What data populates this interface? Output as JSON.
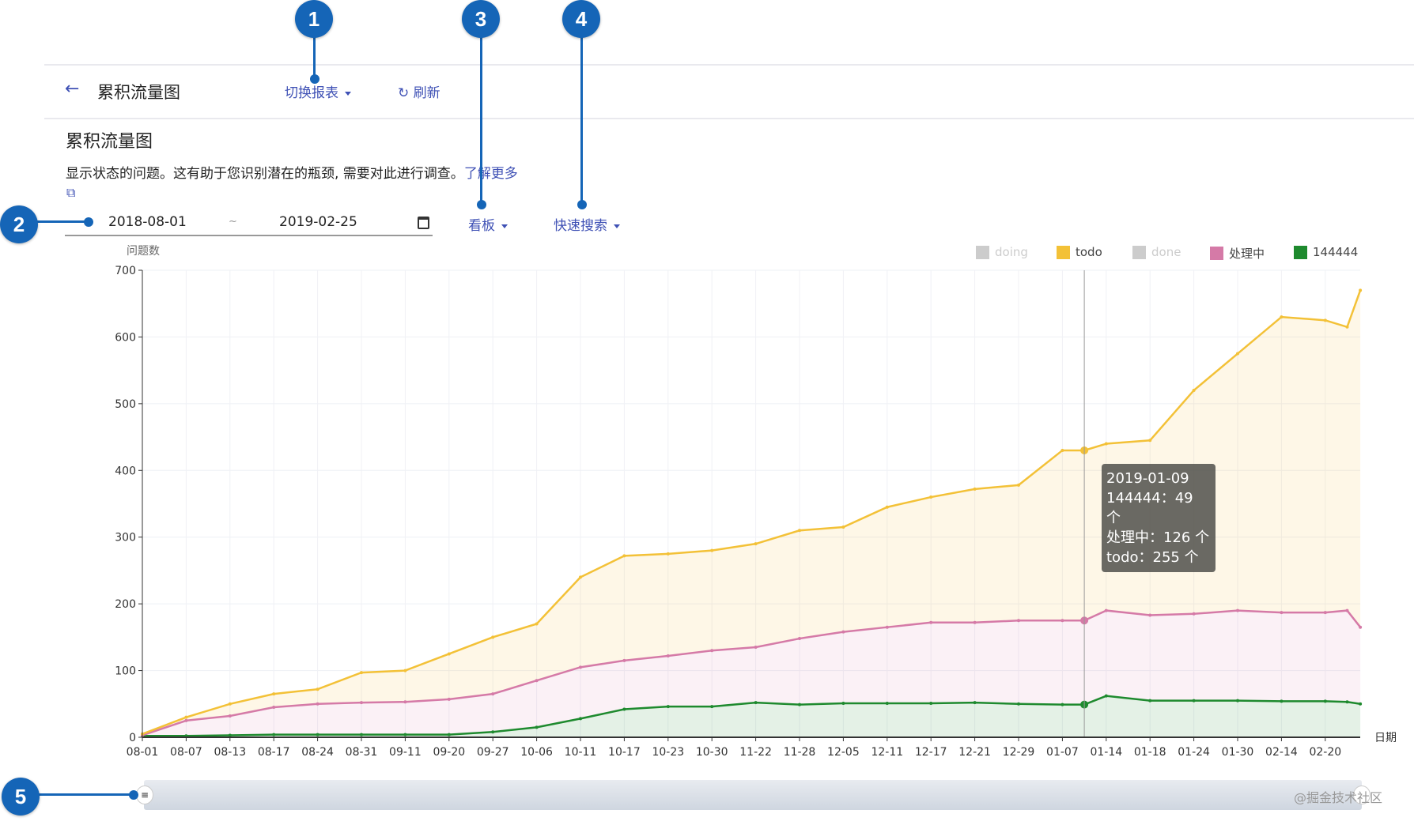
{
  "header": {
    "title": "累积流量图",
    "switch_report": "切换报表",
    "refresh": "刷新"
  },
  "page": {
    "heading": "累积流量图",
    "description": "显示状态的问题。这有助于您识别潜在的瓶颈, 需要对此进行调查。",
    "learn_more": "了解更多"
  },
  "filters": {
    "start_date": "2018-08-01",
    "separator": "~",
    "end_date": "2019-02-25",
    "board": "看板",
    "quick_search": "快速搜索"
  },
  "callouts": [
    "1",
    "2",
    "3",
    "4",
    "5"
  ],
  "tooltip": {
    "date": "2019-01-09",
    "lines": [
      "144444：49 个",
      "处理中：126 个",
      "todo：255 个"
    ]
  },
  "watermark": "@掘金技术社区",
  "colors": {
    "todo": "#f3c137",
    "processing": "#d57aa7",
    "s144444": "#1e8a2e",
    "disabled": "#cccccc"
  },
  "chart_data": {
    "type": "area",
    "stacked": true,
    "ylabel": "问题数",
    "xlabel": "日期",
    "ylim": [
      0,
      700
    ],
    "yticks": [
      0,
      100,
      200,
      300,
      400,
      500,
      600,
      700
    ],
    "categories": [
      "08-01",
      "08-07",
      "08-13",
      "08-17",
      "08-24",
      "08-31",
      "09-11",
      "09-20",
      "09-27",
      "10-06",
      "10-11",
      "10-17",
      "10-23",
      "10-30",
      "11-22",
      "11-28",
      "12-05",
      "12-11",
      "12-17",
      "12-21",
      "12-29",
      "01-07",
      "01-14",
      "01-18",
      "01-24",
      "01-30",
      "02-14",
      "02-20"
    ],
    "x": [
      0,
      1,
      2,
      3,
      4,
      5,
      6,
      7,
      8,
      9,
      10,
      11,
      12,
      13,
      14,
      15,
      16,
      17,
      18,
      19,
      20,
      21,
      21.5,
      22,
      23,
      24,
      25,
      26,
      27,
      27.5,
      27.8
    ],
    "legend": [
      {
        "name": "doing",
        "enabled": false
      },
      {
        "name": "todo",
        "enabled": true
      },
      {
        "name": "done",
        "enabled": false
      },
      {
        "name": "处理中",
        "enabled": true
      },
      {
        "name": "144444",
        "enabled": true
      }
    ],
    "series": [
      {
        "name": "144444",
        "values": [
          2,
          2,
          3,
          4,
          4,
          4,
          4,
          4,
          8,
          15,
          28,
          42,
          46,
          46,
          52,
          49,
          51,
          51,
          51,
          52,
          50,
          49,
          49,
          62,
          55,
          55,
          55,
          54,
          54,
          53,
          50
        ]
      },
      {
        "name": "处理中",
        "values": [
          1,
          23,
          29,
          41,
          46,
          48,
          49,
          53,
          57,
          70,
          77,
          73,
          76,
          84,
          83,
          99,
          107,
          114,
          121,
          120,
          125,
          126,
          126,
          128,
          128,
          130,
          135,
          133,
          133,
          137,
          115
        ]
      },
      {
        "name": "todo",
        "values": [
          2,
          5,
          18,
          20,
          22,
          45,
          47,
          68,
          85,
          85,
          135,
          157,
          153,
          150,
          155,
          162,
          157,
          180,
          188,
          200,
          203,
          255,
          255,
          250,
          262,
          335,
          385,
          443,
          438,
          425,
          505
        ]
      }
    ],
    "highlight_x": 21.5,
    "legend_position": "top-right"
  }
}
